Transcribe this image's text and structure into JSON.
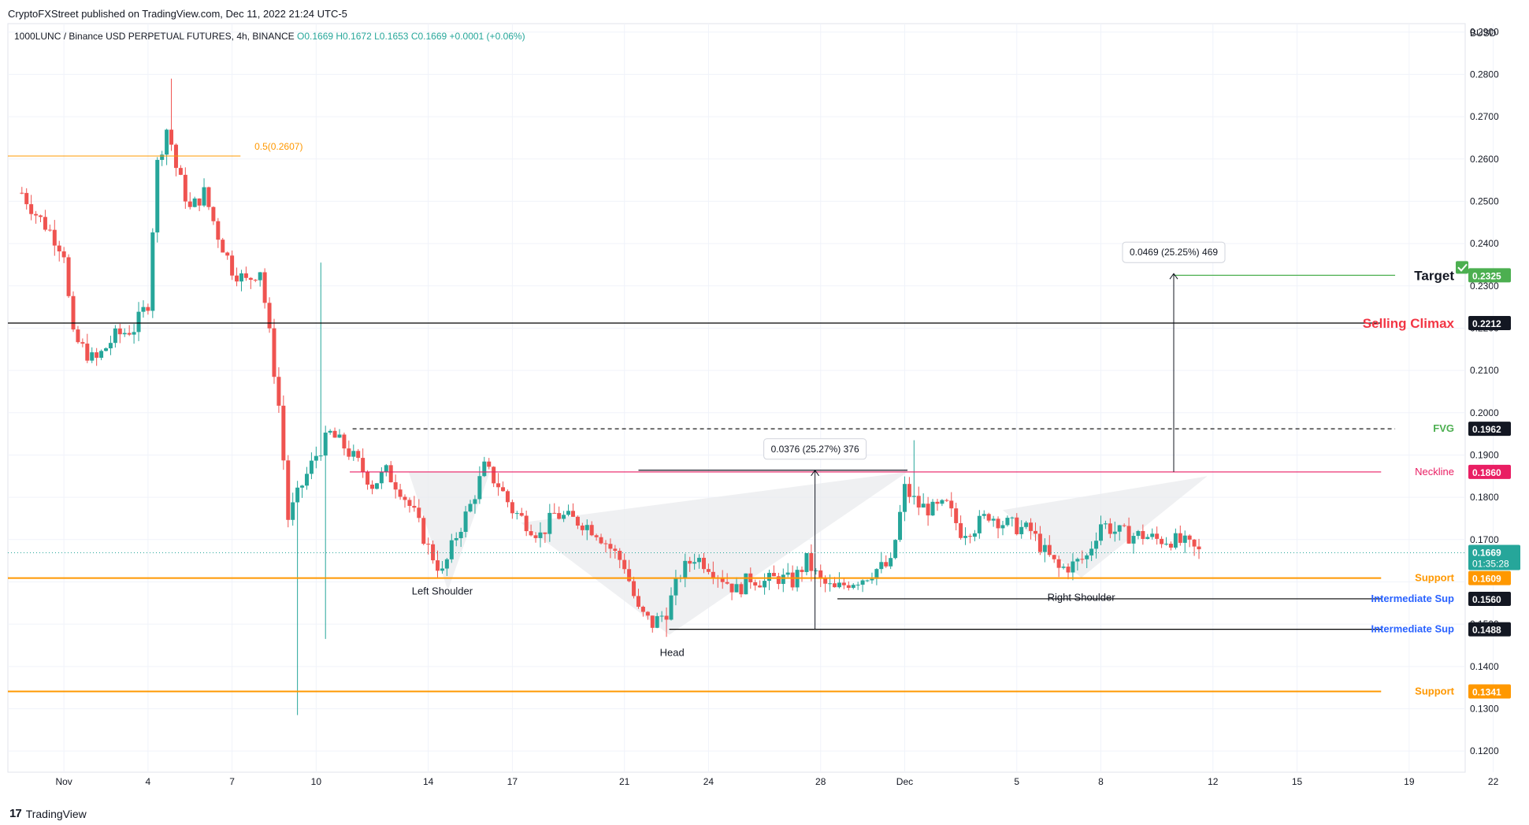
{
  "publisher": "CryptoFXStreet published on TradingView.com, Dec 11, 2022 21:24 UTC-5",
  "footer": {
    "brand": "TradingView",
    "logo": "tradingview-logo-icon"
  },
  "chart_data": {
    "type": "candlestick",
    "symbol_line": {
      "name": "1000LUNC / Binance USD PERPETUAL FUTURES, 4h, BINANCE",
      "open": "O0.1669",
      "high": "H0.1672",
      "low": "L0.1653",
      "close": "C0.1669",
      "change": "+0.0001 (+0.06%)"
    },
    "currency": "BUSD",
    "ylim": [
      0.115,
      0.292
    ],
    "xlim": [
      -2,
      50
    ],
    "y_ticks": [
      "0.1200",
      "0.1300",
      "0.1400",
      "0.1500",
      "0.1600",
      "0.1700",
      "0.1800",
      "0.1900",
      "0.2000",
      "0.2100",
      "0.2200",
      "0.2300",
      "0.2400",
      "0.2500",
      "0.2600",
      "0.2700",
      "0.2800",
      "0.2900"
    ],
    "x_ticks": [
      {
        "label": "Nov",
        "day": 0
      },
      {
        "label": "4",
        "day": 3
      },
      {
        "label": "7",
        "day": 6
      },
      {
        "label": "10",
        "day": 9
      },
      {
        "label": "14",
        "day": 13
      },
      {
        "label": "17",
        "day": 16
      },
      {
        "label": "21",
        "day": 20
      },
      {
        "label": "24",
        "day": 23
      },
      {
        "label": "28",
        "day": 27
      },
      {
        "label": "Dec",
        "day": 30
      },
      {
        "label": "5",
        "day": 34
      },
      {
        "label": "8",
        "day": 37
      },
      {
        "label": "12",
        "day": 41
      },
      {
        "label": "15",
        "day": 44
      },
      {
        "label": "19",
        "day": 48
      },
      {
        "label": "22",
        "day": 51
      }
    ],
    "candles_day_anchors": [
      [
        -1.5,
        0.252
      ],
      [
        -1,
        0.247
      ],
      [
        -0.5,
        0.243
      ],
      [
        0,
        0.238
      ],
      [
        0.3,
        0.218
      ],
      [
        1.1,
        0.212
      ],
      [
        1.8,
        0.218
      ],
      [
        2.5,
        0.22
      ],
      [
        3,
        0.226
      ],
      [
        3.3,
        0.258
      ],
      [
        3.7,
        0.268
      ],
      [
        4,
        0.258
      ],
      [
        4.5,
        0.248
      ],
      [
        5,
        0.252
      ],
      [
        5.5,
        0.242
      ],
      [
        6,
        0.234
      ],
      [
        6.5,
        0.231
      ],
      [
        7,
        0.234
      ],
      [
        7.3,
        0.22
      ],
      [
        7.7,
        0.2
      ],
      [
        8,
        0.175
      ],
      [
        8.5,
        0.183
      ],
      [
        9,
        0.19
      ],
      [
        9.5,
        0.195
      ],
      [
        10,
        0.192
      ],
      [
        10.5,
        0.188
      ],
      [
        11,
        0.183
      ],
      [
        11.5,
        0.186
      ],
      [
        12,
        0.182
      ],
      [
        12.5,
        0.176
      ],
      [
        13,
        0.168
      ],
      [
        13.5,
        0.162
      ],
      [
        14,
        0.171
      ],
      [
        14.5,
        0.178
      ],
      [
        15,
        0.187
      ],
      [
        15.5,
        0.183
      ],
      [
        16,
        0.177
      ],
      [
        16.5,
        0.174
      ],
      [
        17,
        0.171
      ],
      [
        17.5,
        0.176
      ],
      [
        18,
        0.175
      ],
      [
        18.5,
        0.174
      ],
      [
        19,
        0.172
      ],
      [
        19.5,
        0.168
      ],
      [
        20,
        0.164
      ],
      [
        20.5,
        0.153
      ],
      [
        21,
        0.15
      ],
      [
        21.5,
        0.153
      ],
      [
        22,
        0.162
      ],
      [
        22.5,
        0.166
      ],
      [
        23,
        0.164
      ],
      [
        23.5,
        0.161
      ],
      [
        24,
        0.158
      ],
      [
        24.5,
        0.161
      ],
      [
        25,
        0.16
      ],
      [
        25.5,
        0.161
      ],
      [
        26,
        0.16
      ],
      [
        26.5,
        0.165
      ],
      [
        27,
        0.16
      ],
      [
        27.5,
        0.158
      ],
      [
        28,
        0.16
      ],
      [
        28.5,
        0.161
      ],
      [
        29,
        0.163
      ],
      [
        29.5,
        0.164
      ],
      [
        30,
        0.182
      ],
      [
        30.5,
        0.178
      ],
      [
        31,
        0.177
      ],
      [
        31.5,
        0.178
      ],
      [
        32,
        0.172
      ],
      [
        32.5,
        0.173
      ],
      [
        33,
        0.176
      ],
      [
        33.5,
        0.174
      ],
      [
        34,
        0.173
      ],
      [
        34.5,
        0.172
      ],
      [
        35,
        0.167
      ],
      [
        35.5,
        0.163
      ],
      [
        36,
        0.164
      ],
      [
        36.5,
        0.166
      ],
      [
        37,
        0.174
      ],
      [
        37.5,
        0.172
      ],
      [
        38,
        0.171
      ],
      [
        38.5,
        0.171
      ],
      [
        39,
        0.17
      ],
      [
        39.5,
        0.17
      ],
      [
        40,
        0.169
      ],
      [
        40.5,
        0.167
      ]
    ],
    "wick_extremes": [
      {
        "day": 3.8,
        "high": 0.279
      },
      {
        "day": 8.3,
        "low": 0.1285
      },
      {
        "day": 9.1,
        "high": 0.2355
      },
      {
        "day": 9.4,
        "low": 0.1465
      },
      {
        "day": 30.3,
        "high": 0.1935
      },
      {
        "day": 21.5,
        "low": 0.147
      }
    ],
    "levels": [
      {
        "label": "Target",
        "value": 0.2325,
        "tag": "0.2325",
        "color": "#4caf50",
        "checkmark": true
      },
      {
        "label": "Selling Climax",
        "value": 0.2212,
        "tag": "0.2212",
        "color": "#000000",
        "label_color": "#f23645"
      },
      {
        "label": "FVG",
        "value": 0.1962,
        "tag": "0.1962",
        "color": "#000000",
        "dashed": true,
        "label_color": "#4caf50"
      },
      {
        "label": "Neckline",
        "value": 0.186,
        "tag": "0.1860",
        "color": "#e91e63"
      },
      {
        "label": "Support",
        "value": 0.1609,
        "tag": "0.1609",
        "color": "#ff9800"
      },
      {
        "label": "Intermediate Sup",
        "value": 0.156,
        "tag": "0.1560",
        "color": "#000000",
        "label_color": "#2962ff"
      },
      {
        "label": "Intermediate Sup",
        "value": 0.1488,
        "tag": "0.1488",
        "color": "#000000",
        "label_color": "#2962ff"
      },
      {
        "label": "Support",
        "value": 0.1341,
        "tag": "0.1341",
        "color": "#ff9800"
      }
    ],
    "current_price": {
      "value": 0.1669,
      "label": "0.1669",
      "countdown": "01:35:28",
      "color": "#26a69a"
    },
    "fib": {
      "label": "0.5(0.2607)",
      "value": 0.2607,
      "color": "#ff9800"
    },
    "measurements": [
      {
        "label": "0.0376 (25.27%) 376",
        "day": 26.8,
        "from": 0.1488,
        "to": 0.1864
      },
      {
        "label": "0.0469 (25.25%) 469",
        "day": 39.6,
        "from": 0.186,
        "to": 0.2329
      }
    ],
    "pattern_labels": [
      {
        "text": "Left Shoulder",
        "day": 13.5,
        "value": 0.157
      },
      {
        "text": "Head",
        "day": 21.7,
        "value": 0.1425
      },
      {
        "text": "Right Shoulder",
        "day": 36.3,
        "value": 0.1555
      }
    ],
    "colors": {
      "up": "#26a69a",
      "down": "#ef5350",
      "grid": "#f0f3fa",
      "axis_text": "#131722"
    }
  }
}
